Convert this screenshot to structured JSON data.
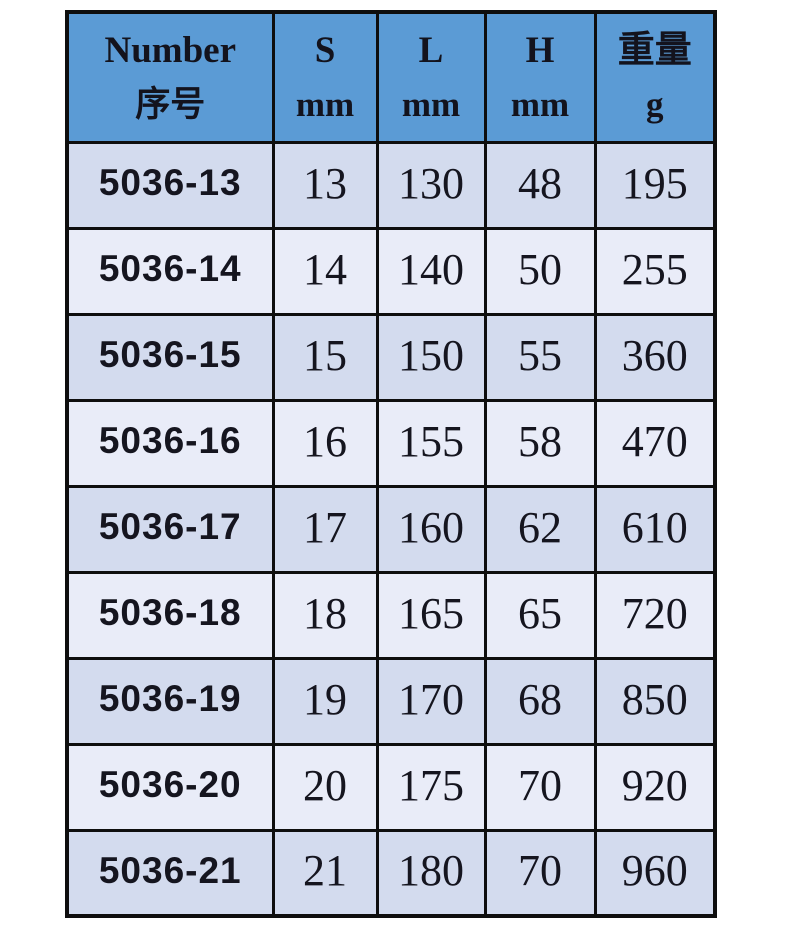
{
  "page": {
    "background_color": "#ffffff",
    "description_colors": {
      "header_bg": "#5b9bd5",
      "row_odd_bg": "#d3dbee",
      "row_even_bg": "#e9ecf8",
      "border": "#0e0e0e",
      "text": "#15151f"
    }
  },
  "table": {
    "header": [
      {
        "line1": "Number",
        "line2": "序号"
      },
      {
        "line1": "S",
        "line2": "mm"
      },
      {
        "line1": "L",
        "line2": "mm"
      },
      {
        "line1": "H",
        "line2": "mm"
      },
      {
        "line1": "重量",
        "line2": "g"
      }
    ],
    "rows": [
      [
        "5036-13",
        "13",
        "130",
        "48",
        "195"
      ],
      [
        "5036-14",
        "14",
        "140",
        "50",
        "255"
      ],
      [
        "5036-15",
        "15",
        "150",
        "55",
        "360"
      ],
      [
        "5036-16",
        "16",
        "155",
        "58",
        "470"
      ],
      [
        "5036-17",
        "17",
        "160",
        "62",
        "610"
      ],
      [
        "5036-18",
        "18",
        "165",
        "65",
        "720"
      ],
      [
        "5036-19",
        "19",
        "170",
        "68",
        "850"
      ],
      [
        "5036-20",
        "20",
        "175",
        "70",
        "920"
      ],
      [
        "5036-21",
        "21",
        "180",
        "70",
        "960"
      ]
    ]
  },
  "chart_data": {
    "type": "table",
    "title": "",
    "columns": [
      "Number 序号",
      "S mm",
      "L mm",
      "H mm",
      "重量 g"
    ],
    "rows": [
      [
        "5036-13",
        13,
        130,
        48,
        195
      ],
      [
        "5036-14",
        14,
        140,
        50,
        255
      ],
      [
        "5036-15",
        15,
        150,
        55,
        360
      ],
      [
        "5036-16",
        16,
        155,
        58,
        470
      ],
      [
        "5036-17",
        17,
        160,
        62,
        610
      ],
      [
        "5036-18",
        18,
        165,
        65,
        720
      ],
      [
        "5036-19",
        19,
        170,
        68,
        850
      ],
      [
        "5036-20",
        20,
        175,
        70,
        920
      ],
      [
        "5036-21",
        21,
        180,
        70,
        960
      ]
    ],
    "layout": {
      "header_fill": "#5b9bd5",
      "alternating_rows": true,
      "grid": "thick-black"
    }
  }
}
